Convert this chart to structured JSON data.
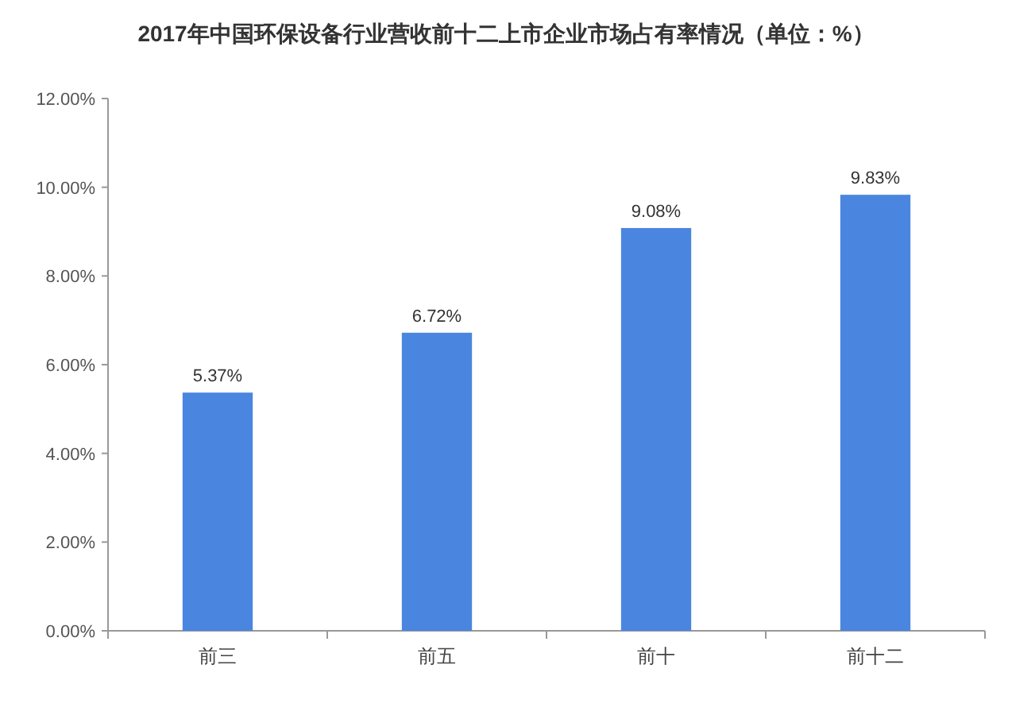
{
  "chart_data": {
    "type": "bar",
    "title": "2017年中国环保设备行业营收前十二上市企业市场占有率情况（单位：%）",
    "categories": [
      "前三",
      "前五",
      "前十",
      "前十二"
    ],
    "values": [
      5.37,
      6.72,
      9.08,
      9.83
    ],
    "value_labels": [
      "5.37%",
      "6.72%",
      "9.08%",
      "9.83%"
    ],
    "color": "#4a86e0",
    "ylim": [
      0,
      12
    ],
    "yticks": [
      {
        "value": 0,
        "label": "0.00%"
      },
      {
        "value": 2,
        "label": "2.00%"
      },
      {
        "value": 4,
        "label": "4.00%"
      },
      {
        "value": 6,
        "label": "6.00%"
      },
      {
        "value": 8,
        "label": "8.00%"
      },
      {
        "value": 10,
        "label": "10.00%"
      },
      {
        "value": 12,
        "label": "12.00%"
      }
    ],
    "grid": false
  }
}
